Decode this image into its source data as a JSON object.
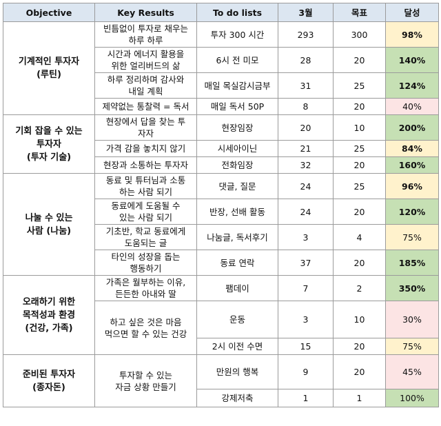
{
  "headers": {
    "objective": "Objective",
    "key_results": "Key Results",
    "todo": "To do lists",
    "month": "3월",
    "target": "목표",
    "achievement": "달성"
  },
  "objectives": [
    "기계적인 투자자\n(루틴)",
    "기회 잡을 수 있는\n투자자\n(투자 기술)",
    "나눌 수 있는\n사람 (나눔)",
    "오래하기 위한\n목적성과 환경\n(건강, 가족)",
    "준비된 투자자\n(종자돈)"
  ],
  "key_results": [
    "빈틈없이 투자로 채우는\n하루 하루",
    "시간과 에너지 활용을\n위한 얼리버드의 삶",
    "하루 정리하며 감사와\n내일 계획",
    "제약없는 통찰력 = 독서",
    "현장에서 답을 찾는 투\n자자",
    "가격 감을 놓치지 않기",
    "현장과 소통하는 투자자",
    "동료 및 튜터님과 소통\n하는 사람 되기",
    "동료에게 도움될 수\n있는 사람 되기",
    "기초반, 학교 동료에게\n도움되는 글",
    "타인의 성장을 돕는\n행동하기",
    "가족은 월부하는 이유,\n든든한 아내와 딸",
    "하고 싶은 것은 마음\n먹으면 할 수 있는 건강",
    "투자할 수 있는\n자금 상황 만들기"
  ],
  "rows": [
    {
      "todo": "투자 300 시간",
      "month": "293",
      "target": "300",
      "achievement": "98%"
    },
    {
      "todo": "6시 전 미모",
      "month": "28",
      "target": "20",
      "achievement": "140%"
    },
    {
      "todo": "매일 목실감시금부",
      "month": "31",
      "target": "25",
      "achievement": "124%"
    },
    {
      "todo": "매일 독서 50P",
      "month": "8",
      "target": "20",
      "achievement": "40%"
    },
    {
      "todo": "현장임장",
      "month": "20",
      "target": "10",
      "achievement": "200%"
    },
    {
      "todo": "시세아이닌",
      "month": "21",
      "target": "25",
      "achievement": "84%"
    },
    {
      "todo": "전화임장",
      "month": "32",
      "target": "20",
      "achievement": "160%"
    },
    {
      "todo": "댓글, 질문",
      "month": "24",
      "target": "25",
      "achievement": "96%"
    },
    {
      "todo": "반장, 선배 활동",
      "month": "24",
      "target": "20",
      "achievement": "120%"
    },
    {
      "todo": "나눔글, 독서후기",
      "month": "3",
      "target": "4",
      "achievement": "75%"
    },
    {
      "todo": "동료 연락",
      "month": "37",
      "target": "20",
      "achievement": "185%"
    },
    {
      "todo": "팸데이",
      "month": "7",
      "target": "2",
      "achievement": "350%"
    },
    {
      "todo": "운동",
      "month": "3",
      "target": "10",
      "achievement": "30%"
    },
    {
      "todo": "2시 이전 수면",
      "month": "15",
      "target": "20",
      "achievement": "75%"
    },
    {
      "todo": "만원의 행복",
      "month": "9",
      "target": "20",
      "achievement": "45%"
    },
    {
      "todo": "강제저축",
      "month": "1",
      "target": "1",
      "achievement": "100%"
    }
  ],
  "colors": {
    "header_bg": "#dce6f1",
    "yellow": "#fff2cc",
    "green": "#c6e0b4",
    "pink": "#fce4e4",
    "border": "#9a9a9a"
  }
}
